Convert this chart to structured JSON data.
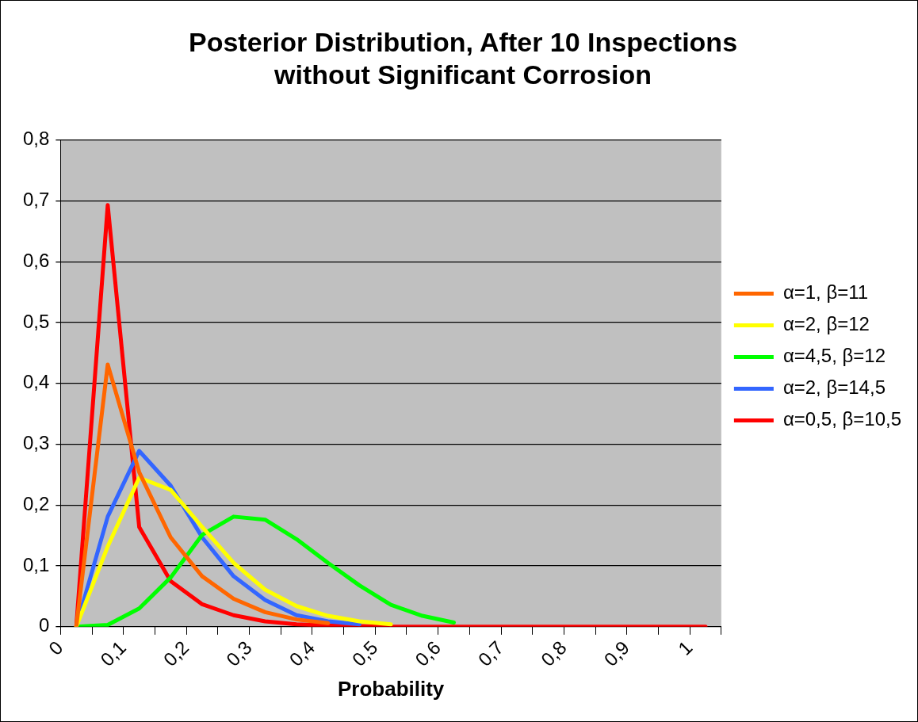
{
  "chart_data": {
    "type": "line",
    "title": "Posterior Distribution, After 10 Inspections\nwithout Significant Corrosion",
    "xlabel": "Probability",
    "x": [
      0.025,
      0.075,
      0.125,
      0.175,
      0.225,
      0.275,
      0.325,
      0.375,
      0.425,
      0.475,
      0.525,
      0.575,
      0.625,
      0.675,
      0.725,
      0.775,
      0.825,
      0.875,
      0.925,
      0.975,
      1.025
    ],
    "series": [
      {
        "name": "α=1, β=11",
        "color": "#ff6600",
        "values": [
          0,
          0.431,
          0.254,
          0.147,
          0.083,
          0.046,
          0.024,
          0.012,
          0.006,
          null,
          null,
          null,
          null,
          null,
          null,
          null,
          null,
          null,
          null,
          null,
          null
        ]
      },
      {
        "name": "α=2, β=12",
        "color": "#ffff00",
        "values": [
          0,
          0.132,
          0.245,
          0.225,
          0.164,
          0.105,
          0.061,
          0.034,
          0.018,
          0.009,
          0.004,
          null,
          null,
          null,
          null,
          null,
          null,
          null,
          null,
          null,
          null
        ]
      },
      {
        "name": "α=4,5, β=12",
        "color": "#00ff00",
        "values": [
          0,
          0.003,
          0.03,
          0.081,
          0.151,
          0.181,
          0.176,
          0.144,
          0.105,
          0.068,
          0.036,
          0.018,
          0.007,
          null,
          null,
          null,
          null,
          null,
          null,
          null,
          null
        ]
      },
      {
        "name": "α=2, β=14,5",
        "color": "#3366ff",
        "values": [
          0,
          0.181,
          0.289,
          0.232,
          0.147,
          0.083,
          0.044,
          0.019,
          0.009,
          0.004,
          null,
          null,
          null,
          null,
          null,
          null,
          null,
          null,
          null,
          null,
          null
        ]
      },
      {
        "name": "α=0,5, β=10,5",
        "color": "#ff0000",
        "values": [
          0,
          0.693,
          0.164,
          0.075,
          0.037,
          0.019,
          0.009,
          0.004,
          0.002,
          0.001,
          0,
          0,
          0,
          0,
          0,
          0,
          0,
          0,
          0,
          0,
          0
        ]
      }
    ],
    "xlim": [
      0,
      1.05
    ],
    "xticks": [
      {
        "value": 0,
        "label": "0"
      },
      {
        "value": 0.05,
        "label": null
      },
      {
        "value": 0.1,
        "label": "0,1"
      },
      {
        "value": 0.15,
        "label": null
      },
      {
        "value": 0.2,
        "label": "0,2"
      },
      {
        "value": 0.25,
        "label": null
      },
      {
        "value": 0.3,
        "label": "0,3"
      },
      {
        "value": 0.35,
        "label": null
      },
      {
        "value": 0.4,
        "label": "0,4"
      },
      {
        "value": 0.45,
        "label": null
      },
      {
        "value": 0.5,
        "label": "0,5"
      },
      {
        "value": 0.55,
        "label": null
      },
      {
        "value": 0.6,
        "label": "0,6"
      },
      {
        "value": 0.65,
        "label": null
      },
      {
        "value": 0.7,
        "label": "0,7"
      },
      {
        "value": 0.75,
        "label": null
      },
      {
        "value": 0.8,
        "label": "0,8"
      },
      {
        "value": 0.85,
        "label": null
      },
      {
        "value": 0.9,
        "label": "0,9"
      },
      {
        "value": 0.95,
        "label": null
      },
      {
        "value": 1,
        "label": "1"
      },
      {
        "value": 1.05,
        "label": null
      }
    ],
    "ylim": [
      0,
      0.8
    ],
    "yticks": [
      0,
      {
        "value": 0.1,
        "label": "0,1"
      },
      {
        "value": 0.2,
        "label": "0,2"
      },
      {
        "value": 0.3,
        "label": "0,3"
      },
      {
        "value": 0.4,
        "label": "0,4"
      },
      {
        "value": 0.5,
        "label": "0,5"
      },
      {
        "value": 0.6,
        "label": "0,6"
      },
      {
        "value": 0.7,
        "label": "0,7"
      },
      {
        "value": 0.8,
        "label": "0,8"
      }
    ],
    "grid": "y",
    "legend": "right",
    "marker": "none",
    "line_style": "solid"
  }
}
